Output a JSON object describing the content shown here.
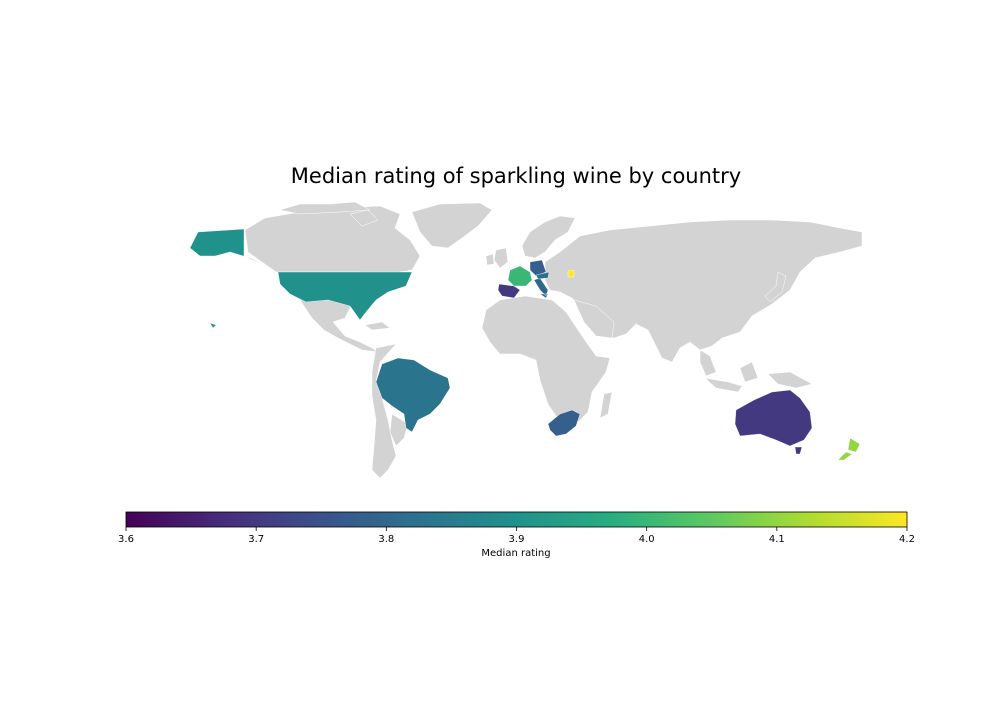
{
  "chart_data": {
    "type": "choropleth",
    "title": "Median rating of sparkling wine by country",
    "colormap": "viridis",
    "no_data_color": "#d3d3d3",
    "colorbar": {
      "label": "Median rating",
      "range": [
        3.6,
        4.2
      ],
      "ticks": [
        "3.6",
        "3.7",
        "3.8",
        "3.9",
        "4.0",
        "4.1",
        "4.2"
      ]
    },
    "countries": [
      {
        "name": "United States",
        "value": 3.9
      },
      {
        "name": "Brazil",
        "value": 3.83
      },
      {
        "name": "France",
        "value": 4.0
      },
      {
        "name": "Spain",
        "value": 3.7
      },
      {
        "name": "Italy",
        "value": 3.8
      },
      {
        "name": "Germany",
        "value": 3.78
      },
      {
        "name": "Austria",
        "value": 3.82
      },
      {
        "name": "Hungary",
        "value": 4.2
      },
      {
        "name": "South Africa",
        "value": 3.78
      },
      {
        "name": "Australia",
        "value": 3.7
      },
      {
        "name": "New Zealand",
        "value": 4.1
      }
    ]
  }
}
